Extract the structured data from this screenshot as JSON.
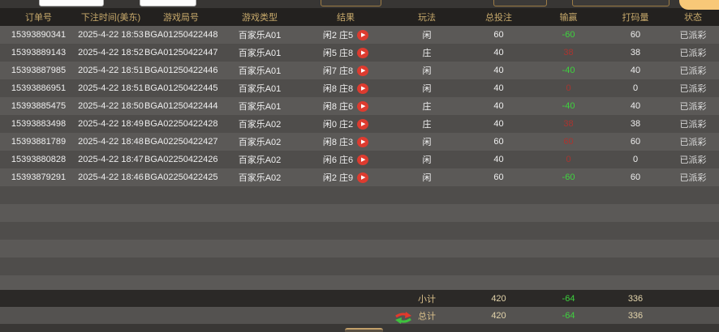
{
  "topbar": {
    "text_inputs": [
      {
        "value": ""
      },
      {
        "value": ""
      }
    ],
    "selects": [
      {
        "value": ""
      },
      {
        "value": ""
      },
      {
        "value": ""
      }
    ],
    "search_button_label": ""
  },
  "table": {
    "columns": [
      {
        "key": "order",
        "label": "订单号"
      },
      {
        "key": "time",
        "label": "下注时间(美东)"
      },
      {
        "key": "round",
        "label": "游戏局号"
      },
      {
        "key": "type",
        "label": "游戏类型"
      },
      {
        "key": "result",
        "label": "结果"
      },
      {
        "key": "play",
        "label": "玩法"
      },
      {
        "key": "bet",
        "label": "总投注"
      },
      {
        "key": "win",
        "label": "输赢"
      },
      {
        "key": "turn",
        "label": "打码量"
      },
      {
        "key": "status",
        "label": "状态"
      }
    ],
    "rows": [
      {
        "order": "15393890341",
        "time": "2025-4-22 18:53",
        "round": "BGA01250422448",
        "type": "百家乐A01",
        "result": "闲2 庄5",
        "play": "闲",
        "bet": "60",
        "win": "-60",
        "win_color": "green",
        "turn": "60",
        "status": "已派彩"
      },
      {
        "order": "15393889143",
        "time": "2025-4-22 18:52",
        "round": "BGA01250422447",
        "type": "百家乐A01",
        "result": "闲5 庄8",
        "play": "庄",
        "bet": "40",
        "win": "38",
        "win_color": "red",
        "turn": "38",
        "status": "已派彩"
      },
      {
        "order": "15393887985",
        "time": "2025-4-22 18:51",
        "round": "BGA01250422446",
        "type": "百家乐A01",
        "result": "闲7 庄8",
        "play": "闲",
        "bet": "40",
        "win": "-40",
        "win_color": "green",
        "turn": "40",
        "status": "已派彩"
      },
      {
        "order": "15393886951",
        "time": "2025-4-22 18:51",
        "round": "BGA01250422445",
        "type": "百家乐A01",
        "result": "闲8 庄8",
        "play": "闲",
        "bet": "40",
        "win": "0",
        "win_color": "red",
        "turn": "0",
        "status": "已派彩"
      },
      {
        "order": "15393885475",
        "time": "2025-4-22 18:50",
        "round": "BGA01250422444",
        "type": "百家乐A01",
        "result": "闲8 庄6",
        "play": "庄",
        "bet": "40",
        "win": "-40",
        "win_color": "green",
        "turn": "40",
        "status": "已派彩"
      },
      {
        "order": "15393883498",
        "time": "2025-4-22 18:49",
        "round": "BGA02250422428",
        "type": "百家乐A02",
        "result": "闲0 庄2",
        "play": "庄",
        "bet": "40",
        "win": "38",
        "win_color": "red",
        "turn": "38",
        "status": "已派彩"
      },
      {
        "order": "15393881789",
        "time": "2025-4-22 18:48",
        "round": "BGA02250422427",
        "type": "百家乐A02",
        "result": "闲8 庄3",
        "play": "闲",
        "bet": "60",
        "win": "60",
        "win_color": "red",
        "turn": "60",
        "status": "已派彩"
      },
      {
        "order": "15393880828",
        "time": "2025-4-22 18:47",
        "round": "BGA02250422426",
        "type": "百家乐A02",
        "result": "闲6 庄6",
        "play": "闲",
        "bet": "40",
        "win": "0",
        "win_color": "red",
        "turn": "0",
        "status": "已派彩"
      },
      {
        "order": "15393879291",
        "time": "2025-4-22 18:46",
        "round": "BGA02250422425",
        "type": "百家乐A02",
        "result": "闲2 庄9",
        "play": "闲",
        "bet": "60",
        "win": "-60",
        "win_color": "green",
        "turn": "60",
        "status": "已派彩"
      }
    ],
    "empty_row_count": 6,
    "replay_icon": "▶"
  },
  "summary": {
    "subtotal": {
      "label": "小计",
      "bet": "420",
      "win": "-64",
      "turn": "336"
    },
    "total": {
      "label": "总计",
      "bet": "420",
      "win": "-64",
      "turn": "336"
    }
  },
  "colors": {
    "win_negative_green": "#3ed33e",
    "win_positive_red": "#a83530",
    "header_gold": "#c7a96b",
    "search_button_orange": "#f8c878",
    "replay_red": "#dd3b2f"
  }
}
